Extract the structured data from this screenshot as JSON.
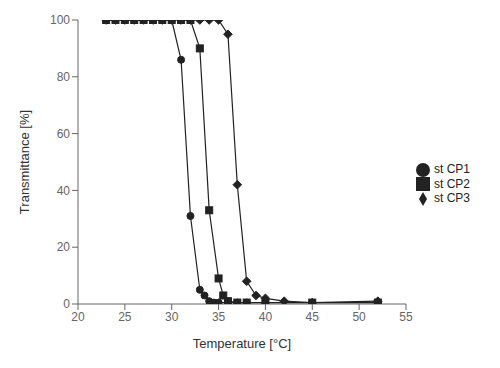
{
  "chart_data": {
    "type": "line",
    "xlabel": "Temperature [°C]",
    "ylabel": "Transmittance [%]",
    "xlim": [
      20,
      55
    ],
    "ylim": [
      0,
      100
    ],
    "xticks": [
      20,
      25,
      30,
      35,
      40,
      45,
      50,
      55
    ],
    "yticks": [
      0,
      20,
      40,
      60,
      80,
      100
    ],
    "grid": false,
    "legend": "center right",
    "series": [
      {
        "name": "st CP1",
        "color": "#222222",
        "marker": "circle",
        "x": [
          23,
          24,
          25,
          26,
          27,
          28,
          29,
          30,
          31,
          32,
          33,
          33.5,
          34,
          34.5,
          35,
          36,
          37,
          38,
          40,
          45,
          52
        ],
        "values": [
          100,
          100,
          100,
          100,
          100,
          100,
          100,
          100,
          86,
          31,
          5,
          3,
          1,
          0.5,
          0.5,
          0.5,
          0.5,
          0.5,
          0.5,
          0.5,
          0.5
        ]
      },
      {
        "name": "st CP2",
        "color": "#222222",
        "marker": "square",
        "x": [
          23,
          24,
          25,
          26,
          27,
          28,
          29,
          30,
          31,
          32,
          33,
          34,
          35,
          35.5,
          36,
          37,
          38,
          40,
          45,
          52
        ],
        "values": [
          100,
          100,
          100,
          100,
          100,
          100,
          100,
          100,
          100,
          100,
          90,
          33,
          9,
          3,
          1,
          0.5,
          0.5,
          0.5,
          0.5,
          0.5
        ]
      },
      {
        "name": "st CP3",
        "color": "#222222",
        "marker": "diamond",
        "x": [
          23,
          24,
          25,
          26,
          27,
          28,
          29,
          30,
          31,
          32,
          33,
          34,
          35,
          36,
          37,
          38,
          39,
          40,
          42,
          45,
          52
        ],
        "values": [
          100,
          100,
          100,
          100,
          100,
          100,
          100,
          100,
          100,
          100,
          100,
          100,
          100,
          95,
          42,
          8,
          3,
          2,
          1,
          0.5,
          1
        ]
      }
    ]
  }
}
